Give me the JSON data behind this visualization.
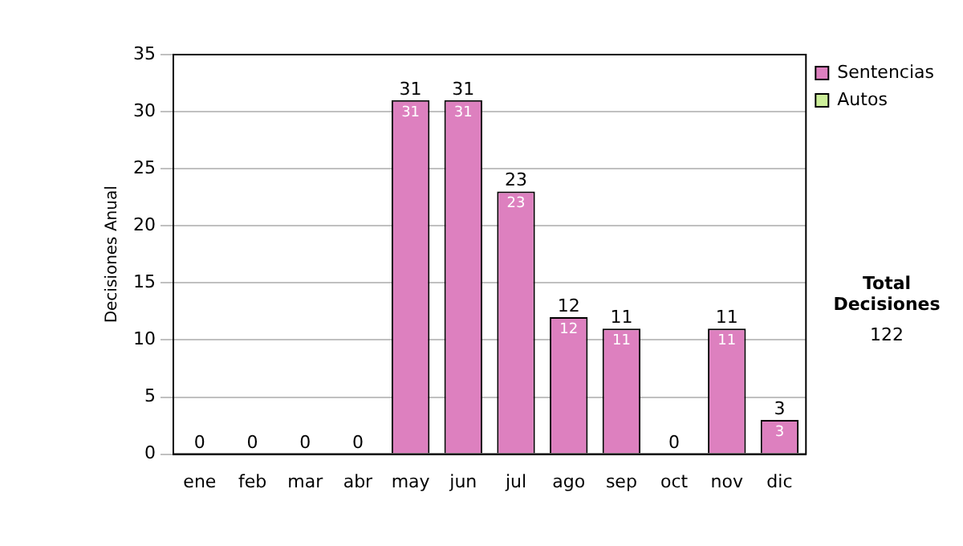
{
  "chart_data": {
    "type": "bar",
    "ylabel": "Decisiones Anual",
    "categories": [
      "ene",
      "feb",
      "mar",
      "abr",
      "may",
      "jun",
      "jul",
      "ago",
      "sep",
      "oct",
      "nov",
      "dic"
    ],
    "series": [
      {
        "name": "Sentencias",
        "color": "#dd80bf",
        "values": [
          0,
          0,
          0,
          0,
          31,
          31,
          23,
          12,
          11,
          0,
          11,
          3
        ],
        "value_labels": [
          null,
          null,
          null,
          null,
          "31",
          "31",
          "23",
          "12",
          "11",
          null,
          "11",
          "3"
        ]
      },
      {
        "name": "Autos",
        "color": "#ccee99",
        "values": [
          0,
          0,
          0,
          0,
          0,
          0,
          0,
          0,
          0,
          0,
          0,
          0
        ]
      }
    ],
    "stacked": true,
    "totals": [
      "0",
      "0",
      "0",
      "0",
      "31",
      "31",
      "23",
      "12",
      "11",
      "0",
      "11",
      "3"
    ],
    "ylim": [
      0,
      35
    ],
    "yticks": [
      0,
      5,
      10,
      15,
      20,
      25,
      30,
      35
    ],
    "grid": "y",
    "legend": "right",
    "annotations": [
      "Total Decisiones",
      "122"
    ]
  }
}
